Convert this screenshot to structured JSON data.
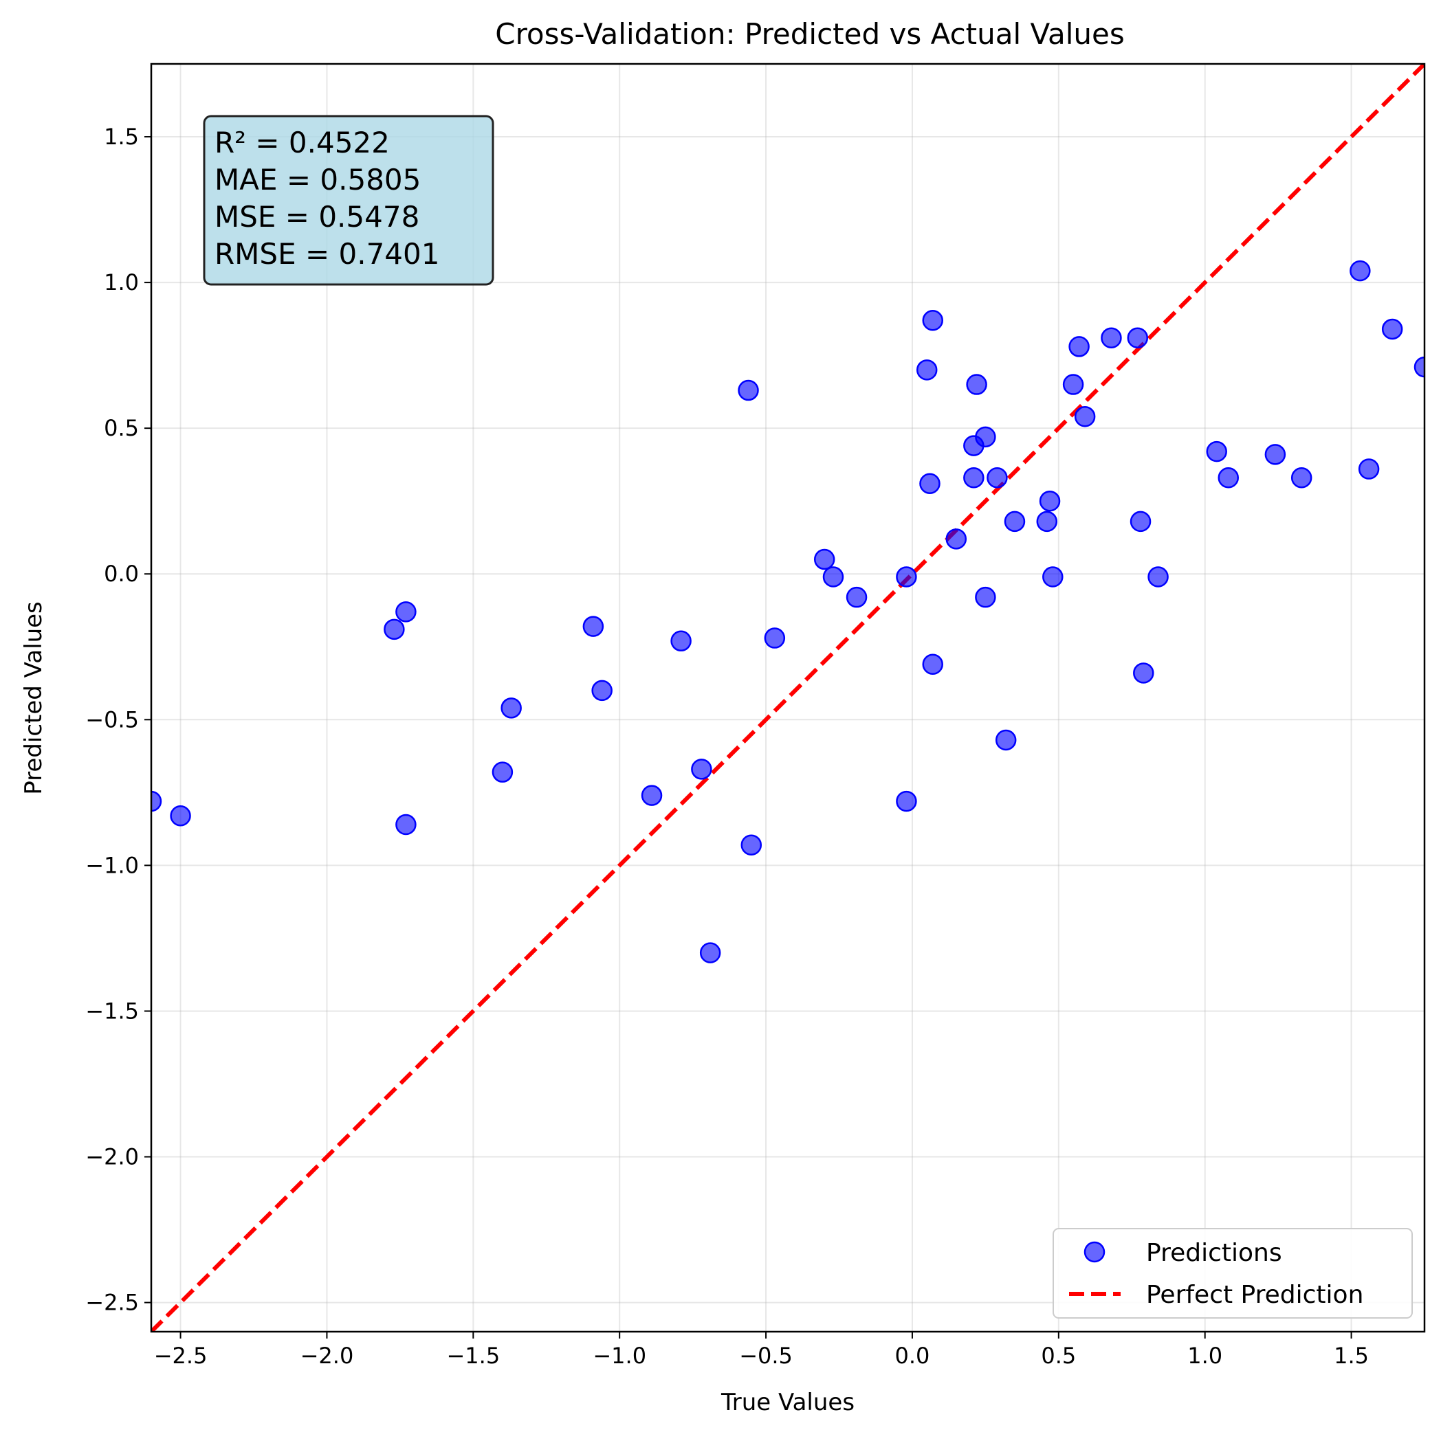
{
  "chart_data": {
    "type": "scatter",
    "title": "Cross-Validation: Predicted vs Actual Values",
    "xlabel": "True Values",
    "ylabel": "Predicted Values",
    "xlim": [
      -2.6,
      1.75
    ],
    "ylim": [
      -2.6,
      1.75
    ],
    "grid": true,
    "legend_position": "bottom-right",
    "colors": {
      "points": "#0000ff",
      "reference_line": "#ff0000",
      "stats_box": "#add8e6"
    },
    "x_ticks": [
      {
        "value": -2.5,
        "label": "−2.5"
      },
      {
        "value": -2.0,
        "label": "−2.0"
      },
      {
        "value": -1.5,
        "label": "−1.5"
      },
      {
        "value": -1.0,
        "label": "−1.0"
      },
      {
        "value": -0.5,
        "label": "−0.5"
      },
      {
        "value": 0.0,
        "label": "0.0"
      },
      {
        "value": 0.5,
        "label": "0.5"
      },
      {
        "value": 1.0,
        "label": "1.0"
      },
      {
        "value": 1.5,
        "label": "1.5"
      }
    ],
    "y_ticks": [
      {
        "value": 1.5,
        "label": "1.5"
      },
      {
        "value": 1.0,
        "label": "1.0"
      },
      {
        "value": 0.5,
        "label": "0.5"
      },
      {
        "value": 0.0,
        "label": "0.0"
      },
      {
        "value": -0.5,
        "label": "−0.5"
      },
      {
        "value": -1.0,
        "label": "−1.0"
      },
      {
        "value": -1.5,
        "label": "−1.5"
      },
      {
        "value": -2.0,
        "label": "−2.0"
      },
      {
        "value": -2.5,
        "label": "−2.5"
      }
    ],
    "stats_lines": [
      "R² = 0.4522",
      "MAE = 0.5805",
      "MSE = 0.5478",
      "RMSE = 0.7401"
    ],
    "series": [
      {
        "name": "Predictions",
        "kind": "scatter",
        "points": [
          [
            -2.6,
            -0.78
          ],
          [
            -2.5,
            -0.83
          ],
          [
            -1.77,
            -0.19
          ],
          [
            -1.73,
            -0.13
          ],
          [
            -1.73,
            -0.86
          ],
          [
            -1.4,
            -0.68
          ],
          [
            -1.37,
            -0.46
          ],
          [
            -1.09,
            -0.18
          ],
          [
            -1.06,
            -0.4
          ],
          [
            -0.89,
            -0.76
          ],
          [
            -0.79,
            -0.23
          ],
          [
            -0.72,
            -0.67
          ],
          [
            -0.69,
            -1.3
          ],
          [
            -0.56,
            0.63
          ],
          [
            -0.55,
            -0.93
          ],
          [
            -0.47,
            -0.22
          ],
          [
            -0.3,
            0.05
          ],
          [
            -0.27,
            -0.01
          ],
          [
            -0.19,
            -0.08
          ],
          [
            -0.02,
            -0.01
          ],
          [
            -0.02,
            -0.78
          ],
          [
            0.05,
            0.7
          ],
          [
            0.06,
            0.31
          ],
          [
            0.07,
            0.87
          ],
          [
            0.07,
            -0.31
          ],
          [
            0.15,
            0.12
          ],
          [
            0.21,
            0.44
          ],
          [
            0.21,
            0.33
          ],
          [
            0.22,
            0.65
          ],
          [
            0.25,
            0.47
          ],
          [
            0.25,
            -0.08
          ],
          [
            0.29,
            0.33
          ],
          [
            0.32,
            -0.57
          ],
          [
            0.35,
            0.18
          ],
          [
            0.46,
            0.18
          ],
          [
            0.47,
            0.25
          ],
          [
            0.48,
            -0.01
          ],
          [
            0.55,
            0.65
          ],
          [
            0.57,
            0.78
          ],
          [
            0.59,
            0.54
          ],
          [
            0.68,
            0.81
          ],
          [
            0.77,
            0.81
          ],
          [
            0.78,
            0.18
          ],
          [
            0.79,
            -0.34
          ],
          [
            0.84,
            -0.01
          ],
          [
            1.04,
            0.42
          ],
          [
            1.08,
            0.33
          ],
          [
            1.24,
            0.41
          ],
          [
            1.33,
            0.33
          ],
          [
            1.53,
            1.04
          ],
          [
            1.56,
            0.36
          ],
          [
            1.64,
            0.84
          ],
          [
            1.75,
            0.71
          ]
        ]
      },
      {
        "name": "Perfect Prediction",
        "kind": "line",
        "points": [
          [
            -2.6,
            -2.6
          ],
          [
            1.75,
            1.75
          ]
        ]
      }
    ]
  }
}
